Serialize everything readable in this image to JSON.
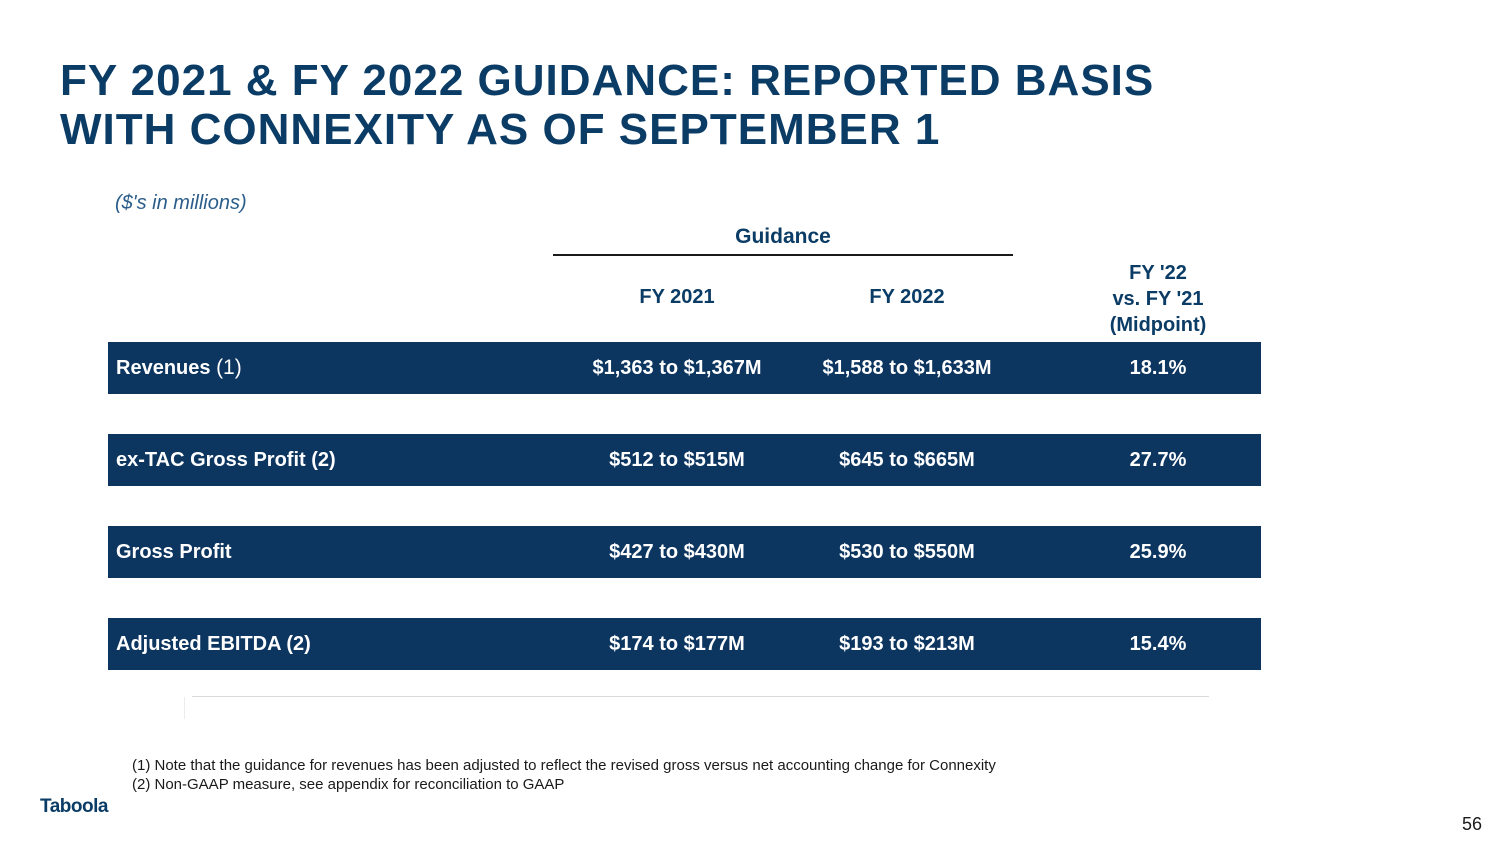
{
  "title": {
    "line1": "FY 2021 & FY 2022 GUIDANCE: REPORTED BASIS",
    "line2": "WITH CONNEXITY AS OF SEPTEMBER 1"
  },
  "units_note": "($'s in millions)",
  "guidance_header": "Guidance",
  "columns": {
    "fy2021": "FY 2021",
    "fy2022": "FY 2022",
    "midpoint": [
      "FY '22",
      "vs. FY '21",
      "(Midpoint)"
    ]
  },
  "rows": [
    {
      "label": "Revenues",
      "note": "(1)",
      "fy2021": "$1,363 to $1,367M",
      "fy2022": "$1,588 to $1,633M",
      "midpoint": "18.1%"
    },
    {
      "label": "ex-TAC Gross Profit (2)",
      "note": "",
      "fy2021": "$512 to $515M",
      "fy2022": "$645 to $665M",
      "midpoint": "27.7%"
    },
    {
      "label": "Gross Profit",
      "note": "",
      "fy2021": "$427 to $430M",
      "fy2022": "$530 to $550M",
      "midpoint": "25.9%"
    },
    {
      "label": "Adjusted EBITDA (2)",
      "note": "",
      "fy2021": "$174 to $177M",
      "fy2022": "$193 to $213M",
      "midpoint": "15.4%"
    }
  ],
  "footnotes": [
    "(1) Note that the guidance for revenues has been adjusted to reflect the revised gross versus net accounting change for Connexity",
    "(2) Non-GAAP measure, see appendix for reconciliation to GAAP"
  ],
  "logo": "Taboola",
  "page_number": "56",
  "colors": {
    "title": "#0b3c66",
    "row_background": "#0c3560",
    "row_text": "#ffffff"
  }
}
